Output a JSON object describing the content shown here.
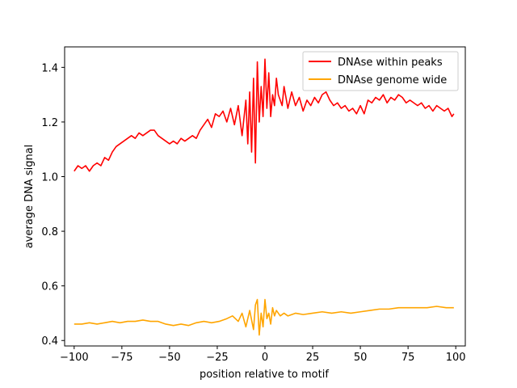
{
  "chart_data": {
    "type": "line",
    "xlabel": "position relative to motif",
    "ylabel": "average DNA signal",
    "xlim": [
      -105,
      105
    ],
    "ylim": [
      0.38,
      1.475
    ],
    "xticks": [
      -100,
      -75,
      -50,
      -25,
      0,
      25,
      50,
      75,
      100
    ],
    "xtick_labels": [
      "−100",
      "−75",
      "−50",
      "−25",
      "0",
      "25",
      "50",
      "75",
      "100"
    ],
    "yticks": [
      0.4,
      0.6,
      0.8,
      1.0,
      1.2,
      1.4
    ],
    "ytick_labels": [
      "0.4",
      "0.6",
      "0.8",
      "1.0",
      "1.2",
      "1.4"
    ],
    "grid": false,
    "legend_position": "top-right",
    "series": [
      {
        "name": "DNAse within peaks",
        "color": "#ff0000",
        "x": [
          -100,
          -98,
          -96,
          -94,
          -92,
          -90,
          -88,
          -86,
          -84,
          -82,
          -80,
          -78,
          -76,
          -74,
          -72,
          -70,
          -68,
          -66,
          -64,
          -62,
          -60,
          -58,
          -56,
          -54,
          -52,
          -50,
          -48,
          -46,
          -44,
          -42,
          -40,
          -38,
          -36,
          -34,
          -32,
          -30,
          -28,
          -26,
          -24,
          -22,
          -20,
          -18,
          -16,
          -14,
          -12,
          -10,
          -9,
          -8,
          -7,
          -6,
          -5,
          -4,
          -3,
          -2,
          -1,
          0,
          1,
          2,
          3,
          4,
          5,
          6,
          7,
          8,
          9,
          10,
          12,
          14,
          16,
          18,
          20,
          22,
          24,
          26,
          28,
          30,
          32,
          34,
          36,
          38,
          40,
          42,
          44,
          46,
          48,
          50,
          52,
          54,
          56,
          58,
          60,
          62,
          64,
          66,
          68,
          70,
          72,
          74,
          76,
          78,
          80,
          82,
          84,
          86,
          88,
          90,
          92,
          94,
          96,
          98,
          99
        ],
        "values": [
          1.02,
          1.04,
          1.03,
          1.04,
          1.02,
          1.04,
          1.05,
          1.04,
          1.07,
          1.06,
          1.09,
          1.11,
          1.12,
          1.13,
          1.14,
          1.15,
          1.14,
          1.16,
          1.15,
          1.16,
          1.17,
          1.17,
          1.15,
          1.14,
          1.13,
          1.12,
          1.13,
          1.12,
          1.14,
          1.13,
          1.14,
          1.15,
          1.14,
          1.17,
          1.19,
          1.21,
          1.18,
          1.23,
          1.22,
          1.24,
          1.2,
          1.25,
          1.19,
          1.26,
          1.15,
          1.28,
          1.12,
          1.31,
          1.09,
          1.36,
          1.05,
          1.42,
          1.2,
          1.33,
          1.22,
          1.43,
          1.25,
          1.38,
          1.22,
          1.3,
          1.26,
          1.36,
          1.3,
          1.28,
          1.26,
          1.33,
          1.25,
          1.31,
          1.26,
          1.29,
          1.24,
          1.28,
          1.26,
          1.29,
          1.27,
          1.3,
          1.31,
          1.28,
          1.26,
          1.27,
          1.25,
          1.26,
          1.24,
          1.25,
          1.23,
          1.26,
          1.23,
          1.28,
          1.27,
          1.29,
          1.28,
          1.3,
          1.27,
          1.29,
          1.28,
          1.3,
          1.29,
          1.27,
          1.28,
          1.27,
          1.26,
          1.27,
          1.25,
          1.26,
          1.24,
          1.26,
          1.25,
          1.24,
          1.25,
          1.22,
          1.23
        ]
      },
      {
        "name": "DNAse genome wide",
        "color": "#ffa500",
        "x": [
          -100,
          -96,
          -92,
          -88,
          -84,
          -80,
          -76,
          -72,
          -68,
          -64,
          -60,
          -56,
          -52,
          -48,
          -44,
          -40,
          -36,
          -32,
          -28,
          -24,
          -20,
          -17,
          -14,
          -12,
          -10,
          -8,
          -6,
          -5,
          -4,
          -3,
          -2,
          -1,
          0,
          1,
          2,
          3,
          4,
          5,
          6,
          8,
          10,
          12,
          16,
          20,
          25,
          30,
          35,
          40,
          45,
          50,
          55,
          60,
          65,
          70,
          75,
          80,
          85,
          90,
          95,
          99
        ],
        "values": [
          0.46,
          0.46,
          0.465,
          0.46,
          0.465,
          0.47,
          0.465,
          0.47,
          0.47,
          0.475,
          0.47,
          0.47,
          0.46,
          0.455,
          0.46,
          0.455,
          0.465,
          0.47,
          0.465,
          0.47,
          0.48,
          0.49,
          0.47,
          0.5,
          0.45,
          0.51,
          0.44,
          0.53,
          0.55,
          0.42,
          0.5,
          0.45,
          0.55,
          0.48,
          0.5,
          0.46,
          0.52,
          0.49,
          0.51,
          0.49,
          0.5,
          0.49,
          0.5,
          0.495,
          0.5,
          0.505,
          0.5,
          0.505,
          0.5,
          0.505,
          0.51,
          0.515,
          0.515,
          0.52,
          0.52,
          0.52,
          0.52,
          0.525,
          0.52,
          0.52
        ]
      }
    ]
  }
}
